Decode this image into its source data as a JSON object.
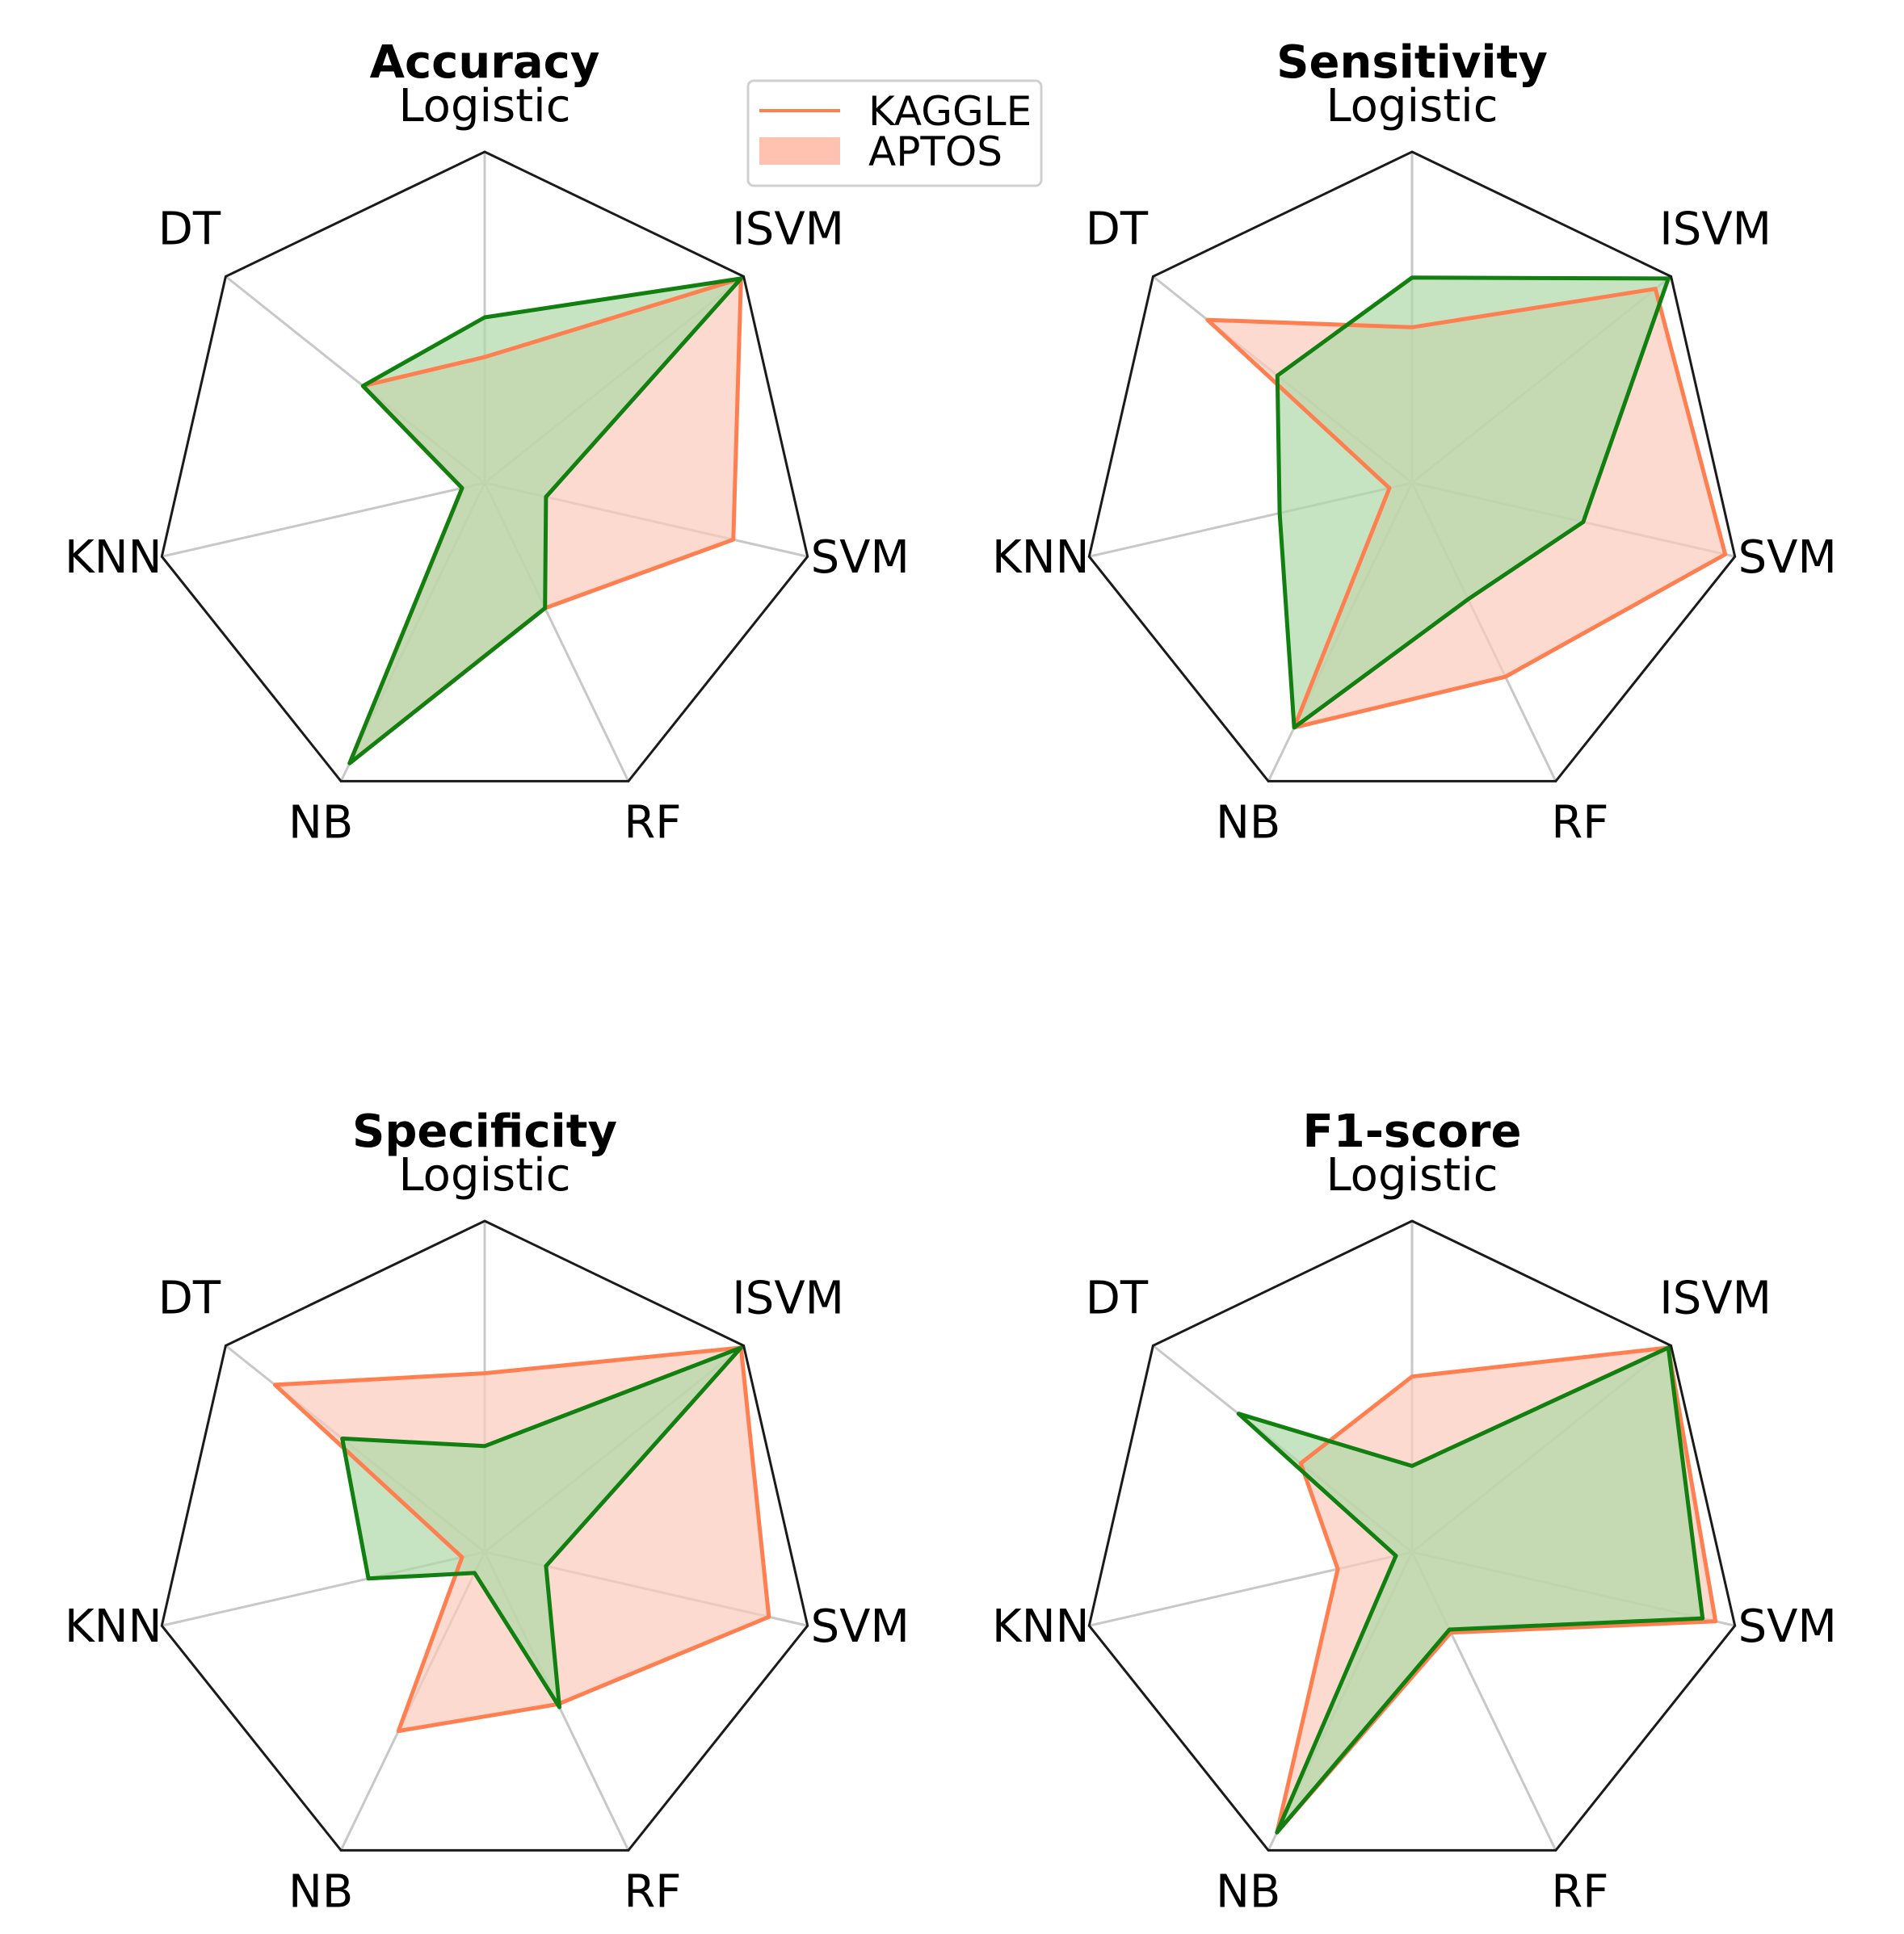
{
  "chart_data": {
    "type": "radar",
    "axes": [
      "Logistic",
      "ISVM",
      "SVM",
      "RF",
      "NB",
      "KNN",
      "DT"
    ],
    "rlim": [
      0,
      1
    ],
    "legend": {
      "placement": "top-center",
      "entries": [
        {
          "label": "KAGGLE",
          "style": "line",
          "color": "#ff7f50"
        },
        {
          "label": "APTOS",
          "style": "fill",
          "color": "#ffc2b0"
        }
      ]
    },
    "series_styles": {
      "kaggle": {
        "line": "#ff7f50",
        "fill": "#fbcbbb"
      },
      "aptos": {
        "line": "#118011",
        "fill": "#aed9a7"
      }
    },
    "charts": [
      {
        "title": "Accuracy",
        "series": [
          {
            "name": "KAGGLE",
            "values": [
              0.38,
              0.99,
              0.77,
              0.42,
              0.94,
              0.07,
              0.47
            ]
          },
          {
            "name": "APTOS",
            "values": [
              0.5,
              0.99,
              0.19,
              0.42,
              0.94,
              0.07,
              0.47
            ]
          }
        ]
      },
      {
        "title": "Sensitivity",
        "series": [
          {
            "name": "KAGGLE",
            "values": [
              0.47,
              0.94,
              0.97,
              0.65,
              0.82,
              0.07,
              0.79
            ]
          },
          {
            "name": "APTOS",
            "values": [
              0.62,
              0.99,
              0.53,
              0.39,
              0.82,
              0.41,
              0.52
            ]
          }
        ]
      },
      {
        "title": "Specificity",
        "series": [
          {
            "name": "KAGGLE",
            "values": [
              0.54,
              0.99,
              0.88,
              0.51,
              0.6,
              0.07,
              0.81
            ]
          },
          {
            "name": "APTOS",
            "values": [
              0.32,
              0.99,
              0.19,
              0.52,
              0.07,
              0.36,
              0.55
            ]
          }
        ]
      },
      {
        "title": "F1-score",
        "series": [
          {
            "name": "KAGGLE",
            "values": [
              0.53,
              0.99,
              0.94,
              0.27,
              0.94,
              0.23,
              0.43
            ]
          },
          {
            "name": "APTOS",
            "values": [
              0.26,
              0.99,
              0.9,
              0.26,
              0.94,
              0.05,
              0.67
            ]
          }
        ]
      }
    ]
  }
}
